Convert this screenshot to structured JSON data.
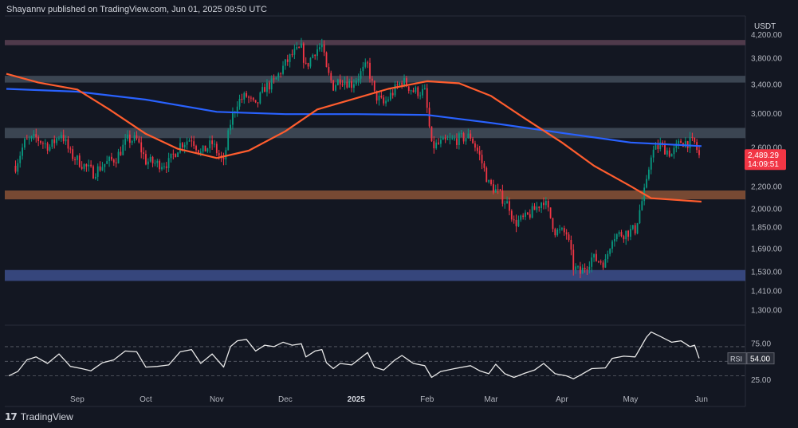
{
  "header": {
    "text": "Shayannv published on TradingView.com, Jun 01, 2025 09:50 UTC"
  },
  "footer": {
    "brand": "TradingView",
    "logo_glyph": "17"
  },
  "colors": {
    "background": "#131722",
    "up_candle": "#089981",
    "down_candle": "#f23645",
    "ma_short": "#ff5d2e",
    "ma_long": "#2962ff",
    "rsi_line": "#e8e8e8",
    "price_label": "#f23645",
    "zone_top": "#5a4152",
    "zone_grey": "#434d5a",
    "zone_orange": "#8a5236",
    "zone_blue": "#3d4f8c"
  },
  "chart_data": {
    "type": "candlestick",
    "currency_label": "USDT",
    "y_axis_ticks": [
      "4,200.00",
      "3,800.00",
      "3,400.00",
      "3,000.00",
      "2,600.00",
      "2,200.00",
      "2,000.00",
      "1,850.00",
      "1,690.00",
      "1,530.00",
      "1,410.00",
      "1,300.00"
    ],
    "y_tick_values": [
      4200,
      3800,
      3400,
      3000,
      2600,
      2200,
      2000,
      1850,
      1690,
      1530,
      1410,
      1300
    ],
    "x_axis_ticks": [
      "Sep",
      "Oct",
      "Nov",
      "Dec",
      "2025",
      "Feb",
      "Mar",
      "Apr",
      "May",
      "Jun"
    ],
    "x_tick_dates": [
      "2024-09-01",
      "2024-10-01",
      "2024-11-01",
      "2024-12-01",
      "2025-01-01",
      "2025-02-01",
      "2025-03-01",
      "2025-04-01",
      "2025-05-01",
      "2025-06-01"
    ],
    "ylim": [
      1230,
      4420
    ],
    "log_scale": true,
    "grid": false,
    "last_price": {
      "value": "2,489.29",
      "countdown": "14:09:51"
    },
    "zones": [
      {
        "low": 4010,
        "high": 4100,
        "color": "#5a4152"
      },
      {
        "low": 3420,
        "high": 3520,
        "color": "#434d5a"
      },
      {
        "low": 2700,
        "high": 2820,
        "color": "#434d5a"
      },
      {
        "low": 2080,
        "high": 2160,
        "color": "#8a5236"
      },
      {
        "low": 1470,
        "high": 1540,
        "color": "#3d4f8c"
      }
    ],
    "close_path": [
      [
        "2024-08-05",
        2400
      ],
      [
        "2024-08-09",
        2650
      ],
      [
        "2024-08-14",
        2700
      ],
      [
        "2024-08-20",
        2600
      ],
      [
        "2024-08-25",
        2760
      ],
      [
        "2024-08-29",
        2520
      ],
      [
        "2024-09-04",
        2400
      ],
      [
        "2024-09-08",
        2330
      ],
      [
        "2024-09-13",
        2420
      ],
      [
        "2024-09-18",
        2480
      ],
      [
        "2024-09-23",
        2680
      ],
      [
        "2024-09-27",
        2680
      ],
      [
        "2024-10-01",
        2450
      ],
      [
        "2024-10-06",
        2420
      ],
      [
        "2024-10-11",
        2430
      ],
      [
        "2024-10-16",
        2630
      ],
      [
        "2024-10-21",
        2700
      ],
      [
        "2024-10-25",
        2530
      ],
      [
        "2024-10-30",
        2640
      ],
      [
        "2024-11-04",
        2420
      ],
      [
        "2024-11-07",
        2880
      ],
      [
        "2024-11-10",
        3150
      ],
      [
        "2024-11-14",
        3230
      ],
      [
        "2024-11-18",
        3080
      ],
      [
        "2024-11-22",
        3350
      ],
      [
        "2024-11-26",
        3420
      ],
      [
        "2024-11-30",
        3650
      ],
      [
        "2024-12-04",
        3850
      ],
      [
        "2024-12-08",
        3950
      ],
      [
        "2024-12-10",
        3650
      ],
      [
        "2024-12-14",
        3920
      ],
      [
        "2024-12-17",
        4000
      ],
      [
        "2024-12-19",
        3600
      ],
      [
        "2024-12-22",
        3370
      ],
      [
        "2024-12-25",
        3480
      ],
      [
        "2024-12-30",
        3400
      ],
      [
        "2025-01-06",
        3680
      ],
      [
        "2025-01-09",
        3250
      ],
      [
        "2025-01-13",
        3120
      ],
      [
        "2025-01-18",
        3320
      ],
      [
        "2025-01-21",
        3450
      ],
      [
        "2025-01-26",
        3300
      ],
      [
        "2025-01-31",
        3280
      ],
      [
        "2025-02-03",
        2600
      ],
      [
        "2025-02-07",
        2640
      ],
      [
        "2025-02-13",
        2680
      ],
      [
        "2025-02-20",
        2720
      ],
      [
        "2025-02-24",
        2500
      ],
      [
        "2025-02-28",
        2220
      ],
      [
        "2025-03-03",
        2160
      ],
      [
        "2025-03-09",
        2020
      ],
      [
        "2025-03-11",
        1880
      ],
      [
        "2025-03-16",
        1920
      ],
      [
        "2025-03-20",
        1990
      ],
      [
        "2025-03-24",
        2080
      ],
      [
        "2025-03-29",
        1820
      ],
      [
        "2025-04-03",
        1800
      ],
      [
        "2025-04-06",
        1560
      ],
      [
        "2025-04-09",
        1520
      ],
      [
        "2025-04-14",
        1620
      ],
      [
        "2025-04-20",
        1590
      ],
      [
        "2025-04-23",
        1780
      ],
      [
        "2025-04-28",
        1800
      ],
      [
        "2025-05-03",
        1830
      ],
      [
        "2025-05-08",
        2220
      ],
      [
        "2025-05-10",
        2530
      ],
      [
        "2025-05-14",
        2620
      ],
      [
        "2025-05-19",
        2520
      ],
      [
        "2025-05-23",
        2660
      ],
      [
        "2025-05-27",
        2650
      ],
      [
        "2025-05-29",
        2640
      ],
      [
        "2025-05-31",
        2500
      ]
    ],
    "series": [
      {
        "type": "moving_average",
        "color": "#2962ff",
        "points": [
          [
            "2024-08-01",
            3330
          ],
          [
            "2024-09-01",
            3290
          ],
          [
            "2024-10-01",
            3180
          ],
          [
            "2024-11-01",
            3020
          ],
          [
            "2024-12-01",
            2990
          ],
          [
            "2025-01-01",
            2990
          ],
          [
            "2025-02-01",
            2980
          ],
          [
            "2025-03-01",
            2880
          ],
          [
            "2025-04-01",
            2760
          ],
          [
            "2025-05-01",
            2650
          ],
          [
            "2025-06-01",
            2610
          ]
        ]
      },
      {
        "type": "moving_average",
        "color": "#ff5d2e",
        "points": [
          [
            "2024-08-01",
            3550
          ],
          [
            "2024-08-15",
            3420
          ],
          [
            "2024-09-01",
            3320
          ],
          [
            "2024-09-15",
            3050
          ],
          [
            "2024-10-01",
            2750
          ],
          [
            "2024-10-15",
            2580
          ],
          [
            "2024-11-01",
            2480
          ],
          [
            "2024-11-15",
            2560
          ],
          [
            "2024-12-01",
            2780
          ],
          [
            "2024-12-15",
            3050
          ],
          [
            "2025-01-01",
            3200
          ],
          [
            "2025-01-15",
            3330
          ],
          [
            "2025-02-01",
            3440
          ],
          [
            "2025-02-15",
            3410
          ],
          [
            "2025-03-01",
            3230
          ],
          [
            "2025-03-15",
            2950
          ],
          [
            "2025-04-01",
            2650
          ],
          [
            "2025-04-15",
            2400
          ],
          [
            "2025-05-01",
            2200
          ],
          [
            "2025-05-10",
            2090
          ],
          [
            "2025-06-01",
            2060
          ]
        ]
      }
    ],
    "rsi": {
      "label": "RSI",
      "value": "54.00",
      "ticks": [
        "75.00",
        "25.00"
      ],
      "tick_values": [
        75,
        25
      ],
      "levels": [
        70,
        50,
        30
      ],
      "ylim": [
        10,
        95
      ],
      "points": [
        [
          "2024-08-02",
          30
        ],
        [
          "2024-08-06",
          36
        ],
        [
          "2024-08-10",
          52
        ],
        [
          "2024-08-14",
          56
        ],
        [
          "2024-08-19",
          47
        ],
        [
          "2024-08-24",
          60
        ],
        [
          "2024-08-29",
          43
        ],
        [
          "2024-09-03",
          40
        ],
        [
          "2024-09-07",
          37
        ],
        [
          "2024-09-12",
          48
        ],
        [
          "2024-09-17",
          52
        ],
        [
          "2024-09-22",
          64
        ],
        [
          "2024-09-27",
          63
        ],
        [
          "2024-10-01",
          42
        ],
        [
          "2024-10-06",
          43
        ],
        [
          "2024-10-11",
          45
        ],
        [
          "2024-10-16",
          63
        ],
        [
          "2024-10-21",
          66
        ],
        [
          "2024-10-25",
          47
        ],
        [
          "2024-10-30",
          60
        ],
        [
          "2024-11-04",
          42
        ],
        [
          "2024-11-07",
          70
        ],
        [
          "2024-11-10",
          78
        ],
        [
          "2024-11-14",
          80
        ],
        [
          "2024-11-18",
          64
        ],
        [
          "2024-11-22",
          72
        ],
        [
          "2024-11-26",
          70
        ],
        [
          "2024-11-30",
          76
        ],
        [
          "2024-12-04",
          72
        ],
        [
          "2024-12-08",
          74
        ],
        [
          "2024-12-10",
          56
        ],
        [
          "2024-12-14",
          64
        ],
        [
          "2024-12-17",
          66
        ],
        [
          "2024-12-19",
          48
        ],
        [
          "2024-12-22",
          40
        ],
        [
          "2024-12-25",
          47
        ],
        [
          "2024-12-30",
          45
        ],
        [
          "2025-01-06",
          62
        ],
        [
          "2025-01-09",
          42
        ],
        [
          "2025-01-13",
          38
        ],
        [
          "2025-01-18",
          52
        ],
        [
          "2025-01-21",
          58
        ],
        [
          "2025-01-26",
          47
        ],
        [
          "2025-01-31",
          44
        ],
        [
          "2025-02-03",
          28
        ],
        [
          "2025-02-07",
          36
        ],
        [
          "2025-02-13",
          40
        ],
        [
          "2025-02-20",
          44
        ],
        [
          "2025-02-24",
          37
        ],
        [
          "2025-02-28",
          33
        ],
        [
          "2025-03-03",
          46
        ],
        [
          "2025-03-07",
          33
        ],
        [
          "2025-03-11",
          28
        ],
        [
          "2025-03-16",
          34
        ],
        [
          "2025-03-20",
          38
        ],
        [
          "2025-03-24",
          47
        ],
        [
          "2025-03-29",
          33
        ],
        [
          "2025-04-03",
          30
        ],
        [
          "2025-04-06",
          26
        ],
        [
          "2025-04-09",
          31
        ],
        [
          "2025-04-14",
          40
        ],
        [
          "2025-04-20",
          41
        ],
        [
          "2025-04-23",
          54
        ],
        [
          "2025-04-28",
          57
        ],
        [
          "2025-05-03",
          56
        ],
        [
          "2025-05-08",
          83
        ],
        [
          "2025-05-10",
          90
        ],
        [
          "2025-05-14",
          84
        ],
        [
          "2025-05-19",
          76
        ],
        [
          "2025-05-23",
          78
        ],
        [
          "2025-05-27",
          70
        ],
        [
          "2025-05-29",
          72
        ],
        [
          "2025-05-31",
          54
        ]
      ]
    }
  }
}
